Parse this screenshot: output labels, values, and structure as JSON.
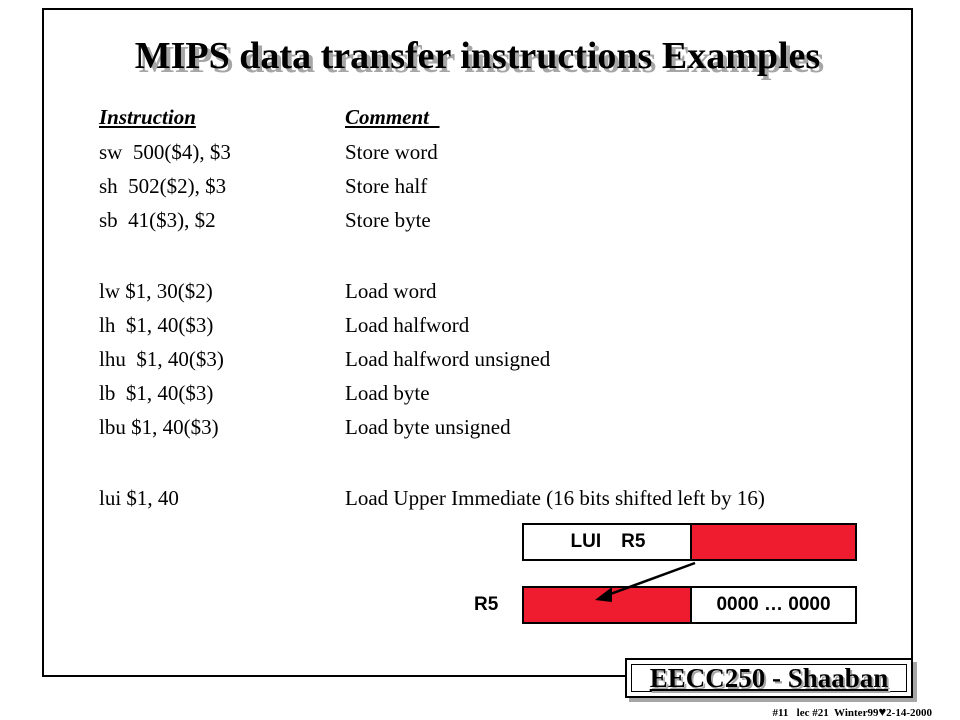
{
  "title": "MIPS data transfer instructions Examples",
  "table": {
    "headers": {
      "instruction": "Instruction",
      "comment": "Comment"
    },
    "rows": [
      {
        "instruction": "sw  500($4), $3",
        "comment": "Store word"
      },
      {
        "instruction": "sh  502($2), $3",
        "comment": "Store half"
      },
      {
        "instruction": "sb  41($3), $2",
        "comment": "Store byte"
      },
      {
        "instruction": "lw $1, 30($2)",
        "comment": "Load word"
      },
      {
        "instruction": "lh  $1, 40($3)",
        "comment": "Load halfword"
      },
      {
        "instruction": "lhu  $1, 40($3)",
        "comment": "Load halfword unsigned"
      },
      {
        "instruction": "lb  $1, 40($3)",
        "comment": "Load byte"
      },
      {
        "instruction": "lbu $1, 40($3)",
        "comment": "Load byte unsigned"
      },
      {
        "instruction": "lui $1, 40",
        "comment": "Load Upper Immediate (16 bits shifted left by 16)"
      }
    ]
  },
  "diagram": {
    "instruction_box": {
      "opcode": "LUI",
      "register": "R5"
    },
    "register_box": {
      "label": "R5",
      "lower_bits": "0000 … 0000"
    },
    "colors": {
      "immediate_fill": "#ee1c2e",
      "shadow": "#a6a6a6"
    }
  },
  "footer": {
    "course": "EECC250 - Shaaban",
    "slide_prefix": "#11   lec #21  Winter99",
    "heart": "♥",
    "date": "2-14-2000"
  }
}
